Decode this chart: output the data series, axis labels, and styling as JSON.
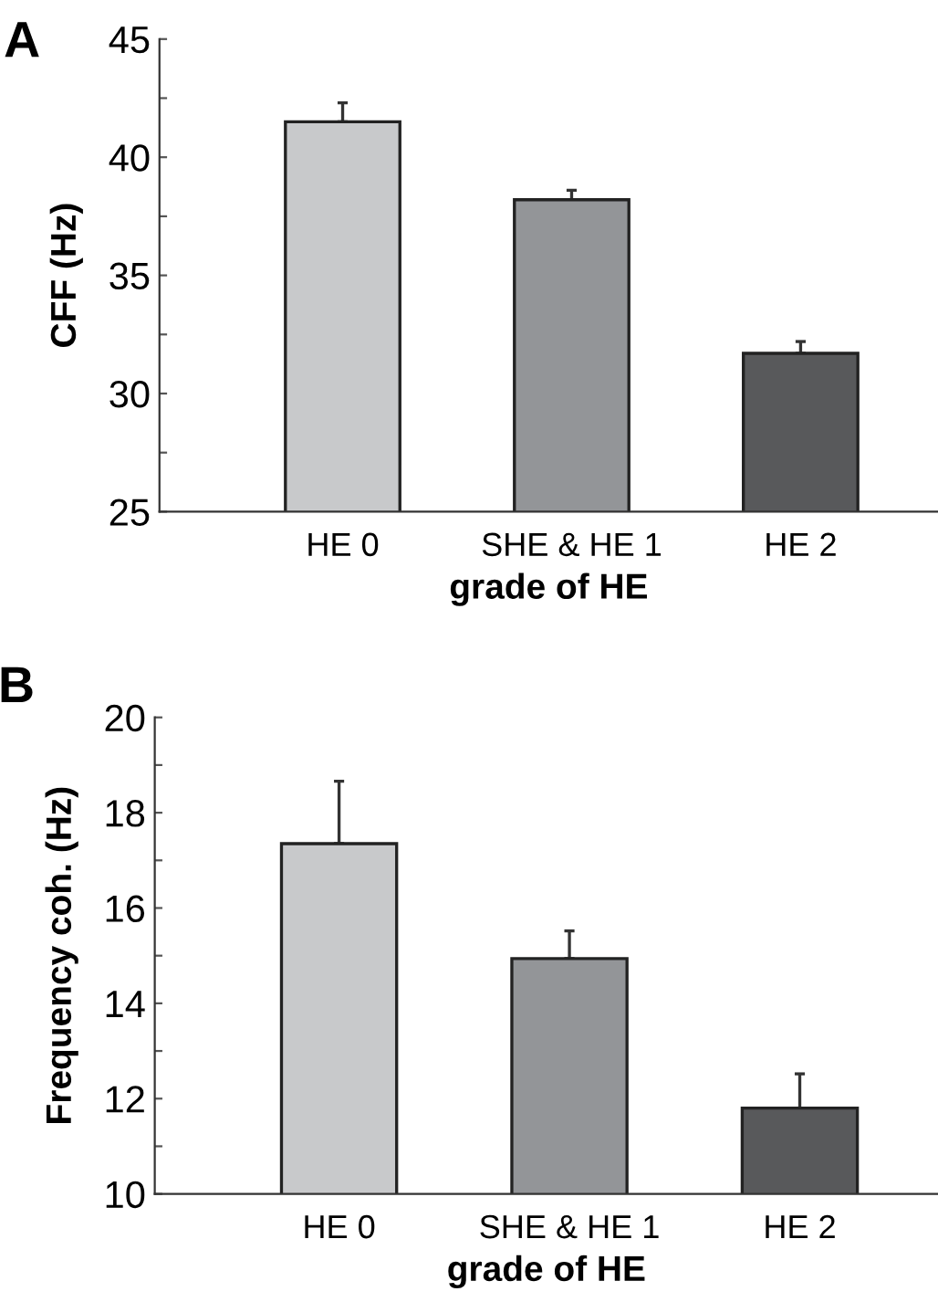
{
  "chart_data": [
    {
      "type": "bar",
      "title": "A",
      "xlabel": "grade of HE",
      "ylabel": "CFF (Hz)",
      "categories": [
        "HE 0",
        "SHE & HE 1",
        "HE 2"
      ],
      "values": [
        41.5,
        38.2,
        31.7
      ],
      "colors": [
        "#c8c9cb",
        "#939598",
        "#58595b"
      ],
      "errors": [
        [
          41.5,
          42.3
        ],
        [
          38.2,
          38.6
        ],
        [
          31.7,
          32.2
        ]
      ],
      "ylim": [
        25,
        45
      ],
      "yticks": [
        25,
        {
          "value": 27.5,
          "label": null
        },
        30,
        {
          "value": 32.5,
          "label": null
        },
        35,
        {
          "value": 37.5,
          "label": null
        },
        40,
        {
          "value": 42.5,
          "label": null
        },
        45
      ],
      "grid": false,
      "legend": false
    },
    {
      "type": "bar",
      "title": "B",
      "xlabel": "grade of HE",
      "ylabel": "Frequency coh. (Hz)",
      "categories": [
        "HE 0",
        "SHE & HE 1",
        "HE 2"
      ],
      "values": [
        17.35,
        14.94,
        11.8
      ],
      "colors": [
        "#c8c9cb",
        "#939598",
        "#58595b"
      ],
      "errors": [
        [
          17.35,
          18.66
        ],
        [
          14.94,
          15.52
        ],
        [
          11.8,
          12.52
        ]
      ],
      "ylim": [
        10,
        20
      ],
      "yticks": [
        10,
        {
          "value": 11,
          "label": null
        },
        12,
        {
          "value": 13,
          "label": null
        },
        14,
        {
          "value": 15,
          "label": null
        },
        16,
        {
          "value": 17,
          "label": null
        },
        18,
        {
          "value": 19,
          "label": null
        },
        20
      ],
      "grid": false,
      "legend": false
    }
  ]
}
